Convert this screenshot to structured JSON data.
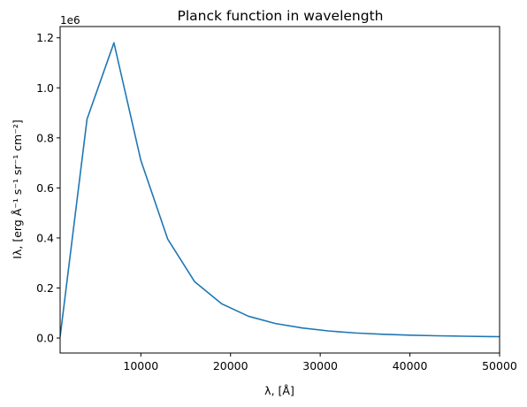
{
  "chart_data": {
    "type": "line",
    "title": "Planck function in wavelength",
    "xlabel": "λ, [Å]",
    "ylabel": "Iλ, [erg Å⁻¹ s⁻¹ sr⁻¹ cm⁻²]",
    "y_offset_label": "1e6",
    "y_scale_factor": 1000000,
    "xlim": [
      1000,
      50000
    ],
    "ylim": [
      -60000,
      1245000
    ],
    "x_ticks": [
      10000,
      20000,
      30000,
      40000,
      50000
    ],
    "x_tick_labels": [
      "10000",
      "20000",
      "30000",
      "40000",
      "50000"
    ],
    "y_ticks": [
      0,
      200000,
      400000,
      600000,
      800000,
      1000000,
      1200000
    ],
    "y_tick_labels": [
      "0.0",
      "0.2",
      "0.4",
      "0.6",
      "0.8",
      "1.0",
      "1.2"
    ],
    "grid": false,
    "series": [
      {
        "color": "#1f77b4",
        "x": [
          1000,
          4000,
          7000,
          10000,
          13000,
          16000,
          19000,
          22000,
          25000,
          28000,
          31000,
          34000,
          37000,
          40000,
          43000,
          46000,
          49000,
          52000
        ],
        "y": [
          5000,
          875000,
          1180000,
          710000,
          395000,
          225000,
          137000,
          87000,
          58000,
          40000,
          28000,
          20000,
          15000,
          11500,
          9000,
          7200,
          5800,
          4700
        ]
      }
    ]
  }
}
